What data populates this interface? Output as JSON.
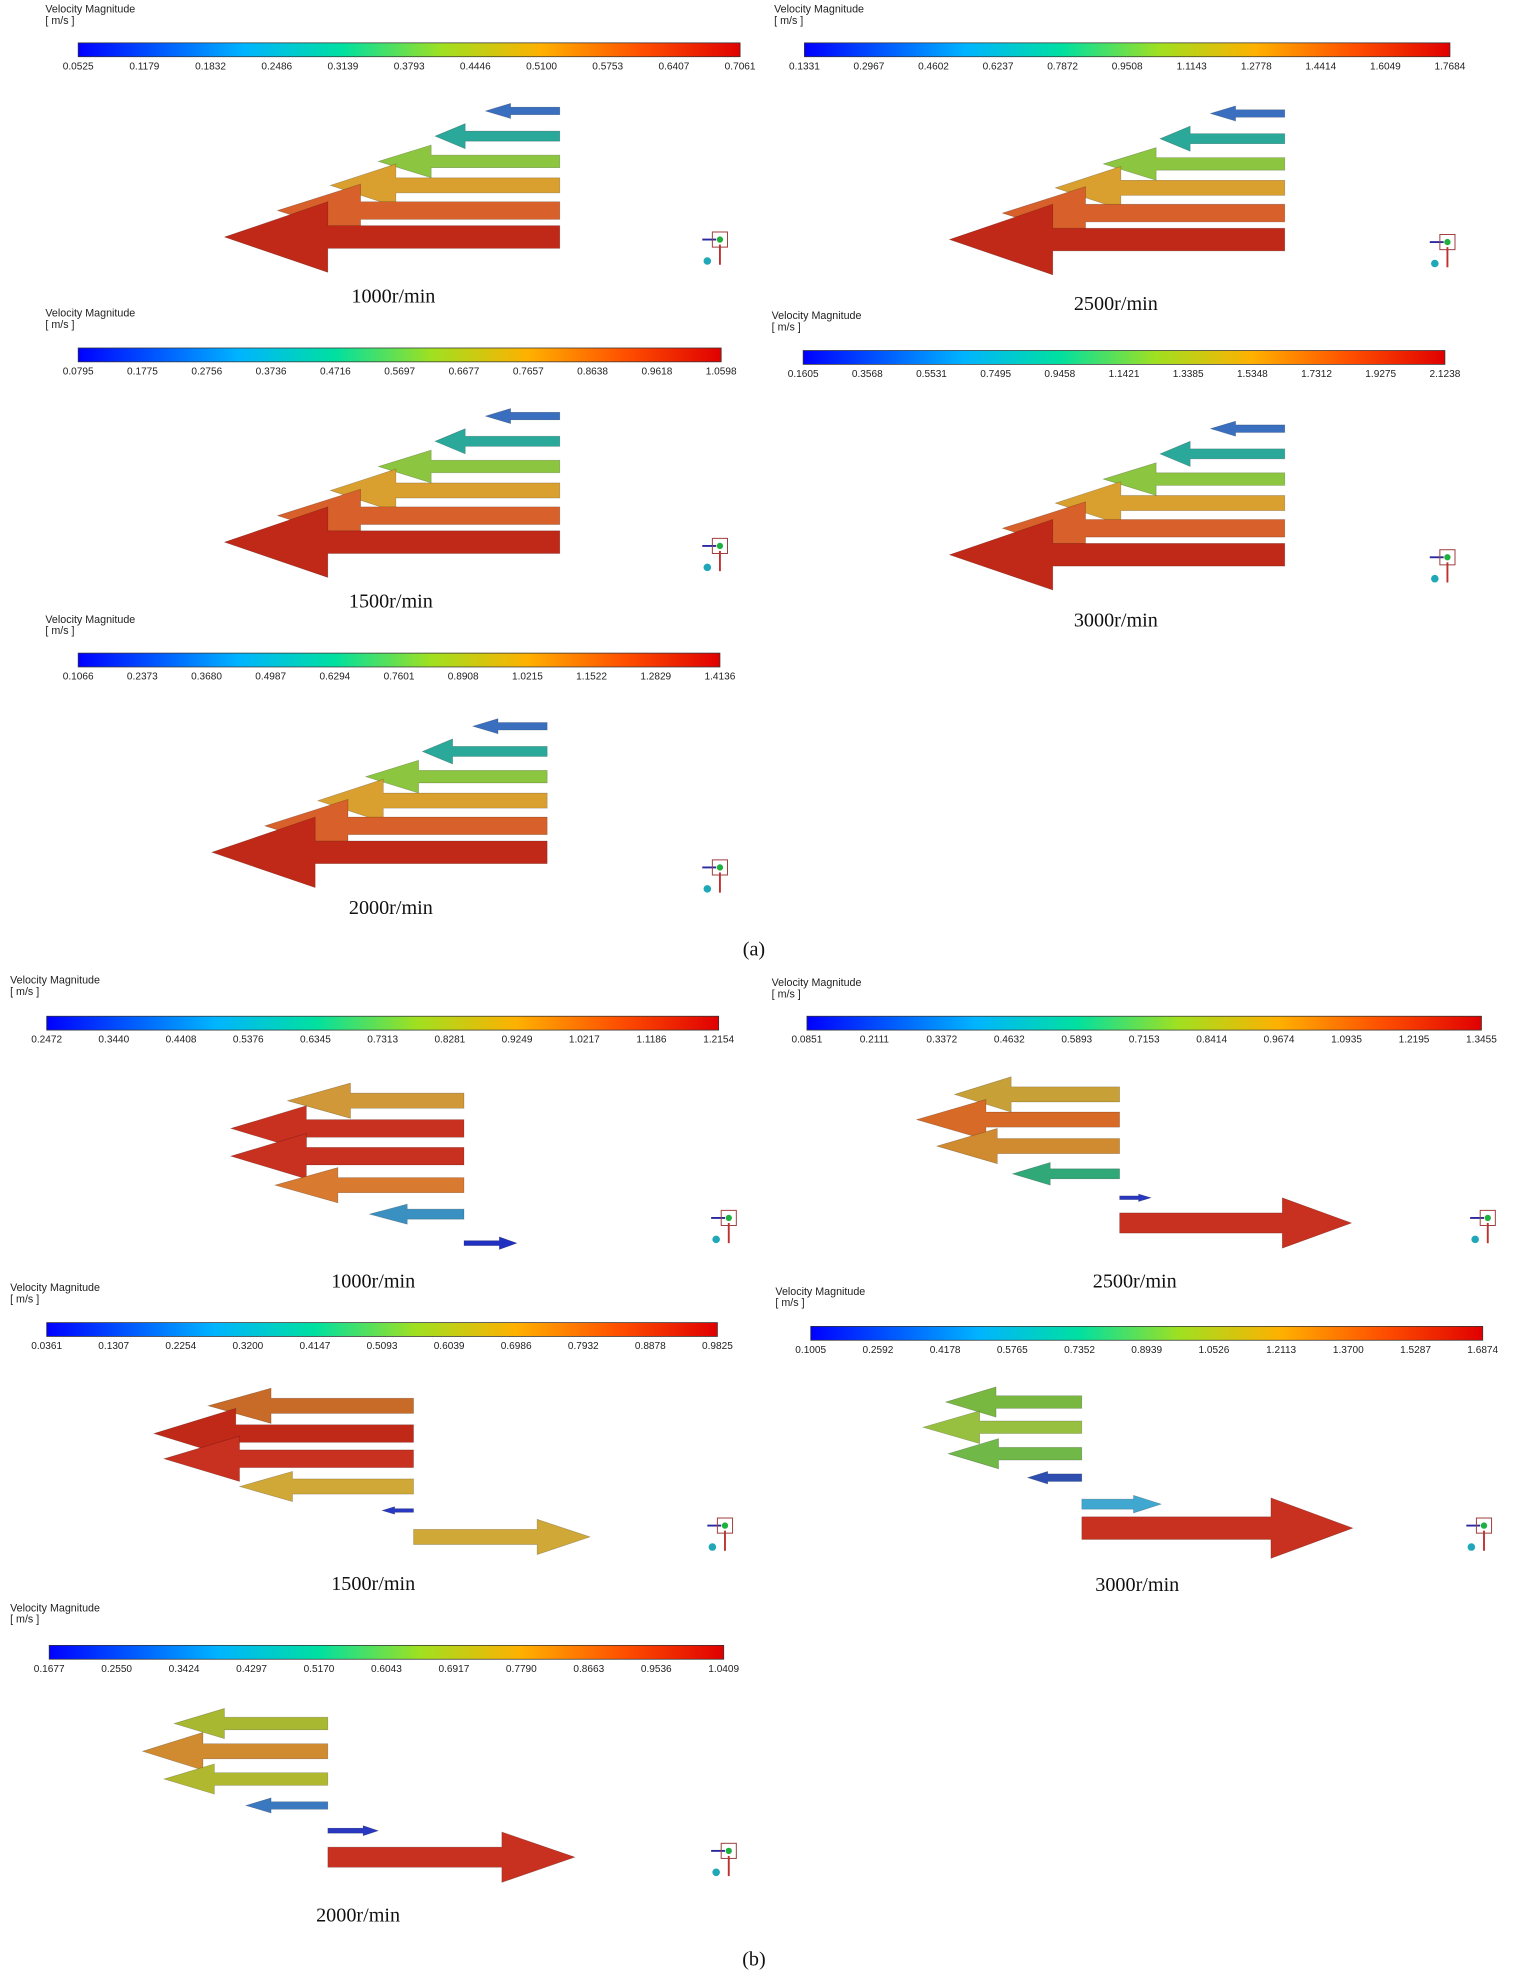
{
  "figure": {
    "panels": [
      {
        "title": "Velocity Magnitude",
        "unit": "[ m/s ]",
        "ticks": [
          "0.0525",
          "0.1179",
          "0.1832",
          "0.2486",
          "0.3139",
          "0.3793",
          "0.4446",
          "0.5100",
          "0.5753",
          "0.6407",
          "0.7061"
        ],
        "caption": "1000r/min"
      },
      {
        "title": "Velocity Magnitude",
        "unit": "[ m/s ]",
        "ticks": [
          "0.1331",
          "0.2967",
          "0.4602",
          "0.6237",
          "0.7872",
          "0.9508",
          "1.1143",
          "1.2778",
          "1.4414",
          "1.6049",
          "1.7684"
        ],
        "caption": "2500r/min"
      },
      {
        "title": "Velocity Magnitude",
        "unit": "[ m/s ]",
        "ticks": [
          "0.0795",
          "0.1775",
          "0.2756",
          "0.3736",
          "0.4716",
          "0.5697",
          "0.6677",
          "0.7657",
          "0.8638",
          "0.9618",
          "1.0598"
        ],
        "caption": "1500r/min"
      },
      {
        "title": "Velocity Magnitude",
        "unit": "[ m/s ]",
        "ticks": [
          "0.1605",
          "0.3568",
          "0.5531",
          "0.7495",
          "0.9458",
          "1.1421",
          "1.3385",
          "1.5348",
          "1.7312",
          "1.9275",
          "2.1238"
        ],
        "caption": "3000r/min"
      },
      {
        "title": "Velocity Magnitude",
        "unit": "[ m/s ]",
        "ticks": [
          "0.1066",
          "0.2373",
          "0.3680",
          "0.4987",
          "0.6294",
          "0.7601",
          "0.8908",
          "1.0215",
          "1.1522",
          "1.2829",
          "1.4136"
        ],
        "caption": "2000r/min"
      },
      {
        "title": "Velocity Magnitude",
        "unit": "[ m/s ]",
        "ticks": [
          "0.2472",
          "0.3440",
          "0.4408",
          "0.5376",
          "0.6345",
          "0.7313",
          "0.8281",
          "0.9249",
          "1.0217",
          "1.1186",
          "1.2154"
        ],
        "caption": "1000r/min"
      },
      {
        "title": "Velocity Magnitude",
        "unit": "[ m/s ]",
        "ticks": [
          "0.0851",
          "0.2111",
          "0.3372",
          "0.4632",
          "0.5893",
          "0.7153",
          "0.8414",
          "0.9674",
          "1.0935",
          "1.2195",
          "1.3455"
        ],
        "caption": "2500r/min"
      },
      {
        "title": "Velocity Magnitude",
        "unit": "[ m/s ]",
        "ticks": [
          "0.0361",
          "0.1307",
          "0.2254",
          "0.3200",
          "0.4147",
          "0.5093",
          "0.6039",
          "0.6986",
          "0.7932",
          "0.8878",
          "0.9825"
        ],
        "caption": "1500r/min"
      },
      {
        "title": "Velocity Magnitude",
        "unit": "[ m/s ]",
        "ticks": [
          "0.1005",
          "0.2592",
          "0.4178",
          "0.5765",
          "0.7352",
          "0.8939",
          "1.0526",
          "1.2113",
          "1.3700",
          "1.5287",
          "1.6874"
        ],
        "caption": "3000r/min"
      },
      {
        "title": "Velocity Magnitude",
        "unit": "[ m/s ]",
        "ticks": [
          "0.1677",
          "0.2550",
          "0.3424",
          "0.4297",
          "0.5170",
          "0.6043",
          "0.6917",
          "0.7790",
          "0.8663",
          "0.9536",
          "1.0409"
        ],
        "caption": "2000r/min"
      }
    ],
    "labels": [
      "(a)",
      "(b)"
    ]
  }
}
